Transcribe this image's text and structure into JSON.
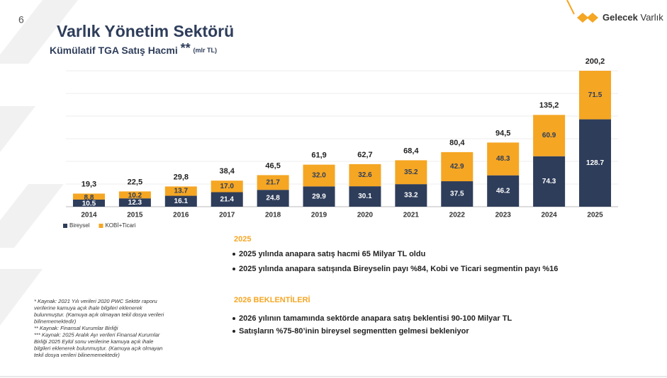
{
  "page_number": "6",
  "logo": {
    "bold": "Gelecek",
    "regular": "Varlık"
  },
  "header": {
    "title": "Varlık Yönetim Sektörü",
    "subtitle": "Kümülatif TGA Satış Hacmi",
    "marker": "**",
    "unit": "(mlr TL)"
  },
  "chart_data": {
    "type": "bar",
    "stacked": true,
    "categories": [
      "2014",
      "2015",
      "2016",
      "2017",
      "2018",
      "2019",
      "2020",
      "2021",
      "2022",
      "2023",
      "2024",
      "2025"
    ],
    "series": [
      {
        "name": "Bireysel",
        "color": "#2e3d5a",
        "values": [
          10.5,
          12.3,
          16.1,
          21.4,
          24.8,
          29.9,
          30.1,
          33.2,
          37.5,
          46.2,
          74.3,
          128.7
        ],
        "value_labels": [
          "10.5",
          "12.3",
          "16.1",
          "21.4",
          "24.8",
          "29.9",
          "30.1",
          "33.2",
          "37.5",
          "46.2",
          "74.3",
          "128.7"
        ]
      },
      {
        "name": "KOBİ+Ticari",
        "color": "#f5a623",
        "values": [
          8.8,
          10.2,
          13.7,
          17.0,
          21.7,
          32.0,
          32.6,
          35.2,
          42.9,
          48.3,
          60.9,
          71.5
        ],
        "value_labels": [
          "8.8",
          "10.2",
          "13.7",
          "17.0",
          "21.7",
          "32.0",
          "32.6",
          "35.2",
          "42.9",
          "48.3",
          "60.9",
          "71.5"
        ]
      }
    ],
    "totals": {
      "values": [
        19.3,
        22.5,
        29.8,
        38.4,
        46.5,
        61.9,
        62.7,
        68.4,
        80.4,
        94.5,
        135.2,
        200.2
      ],
      "value_labels": [
        "19,3",
        "22,5",
        "29,8",
        "38,4",
        "46,5",
        "61,9",
        "62,7",
        "68,4",
        "80,4",
        "94,5",
        "135,2",
        "200,2"
      ]
    },
    "legend": "bottom-left"
  },
  "sections": [
    {
      "heading": "2025",
      "bullets": [
        "2025 yılında anapara satış hacmi 65 Milyar TL oldu",
        "2025 yılında anapara satışında Bireyselin payı %84, Kobi ve Ticari segmentin payı %16"
      ]
    },
    {
      "heading": "2026 BEKLENTİLERİ",
      "bullets": [
        "2026 yılının tamamında sektörde anapara satış beklentisi 90-100 Milyar TL",
        "Satışların %75-80’inin bireysel segmentten gelmesi bekleniyor"
      ]
    }
  ],
  "footnotes": [
    "*  Kaynak:  2021 Yılı verileri 2020 PWC Sektör raporu",
    "verilerine kamuya açık ihale bilgileri eklenerek",
    "bulunmuştur. (Kamuya açık olmayan tekil dosya verileri",
    "bilinememektedir)",
    "** Kaynak:  Finansal Kurumlar Birliği",
    "*** Kaynak: 2025 Aralık Ayı verileri Finansal Kurumlar",
    "Birliği 2025 Eylül sonu verilerine kamuya açık ihale",
    "bilgileri eklenerek bulunmuştur. (Kamuya açık olmayan",
    "tekil dosya verileri bilinememektedir)"
  ]
}
